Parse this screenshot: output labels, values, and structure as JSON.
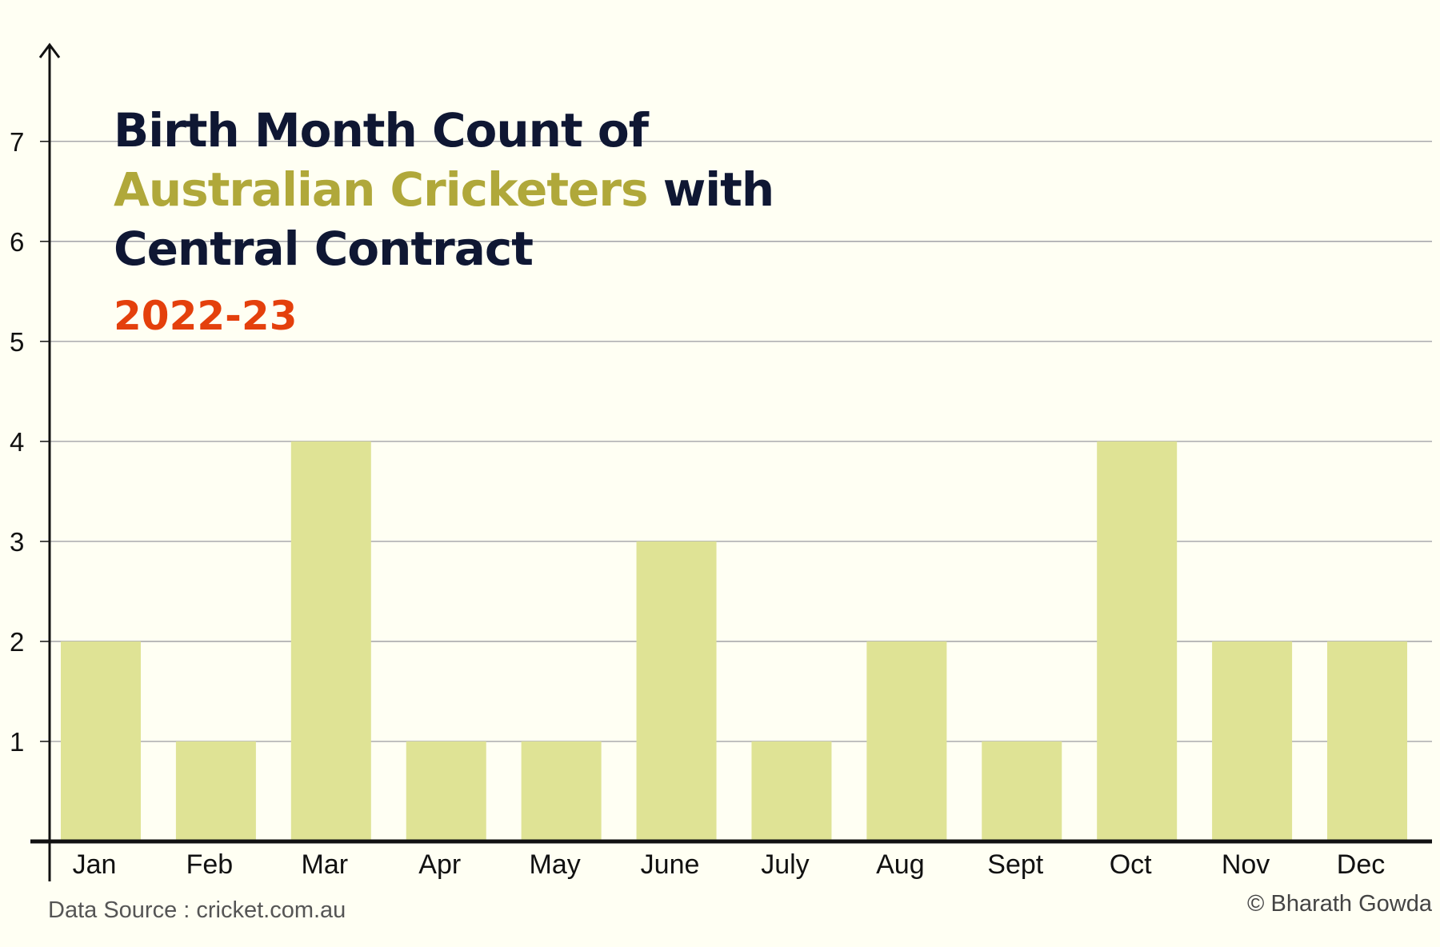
{
  "title": {
    "line1": "Birth Month Count of",
    "line2_accent": "Australian Cricketers",
    "line2_rest": " with",
    "line3": "Central Contract"
  },
  "subtitle": "2022-23",
  "source": "Data Source : cricket.com.au",
  "credit": "© Bharath Gowda",
  "colors": {
    "background": "#fffff3",
    "bar": "#dfe395",
    "title": "#0f1733",
    "accent": "#b0a83a",
    "subtitle": "#e4400c"
  },
  "chart_data": {
    "type": "bar",
    "categories": [
      "Jan",
      "Feb",
      "Mar",
      "Apr",
      "May",
      "June",
      "July",
      "Aug",
      "Sept",
      "Oct",
      "Nov",
      "Dec"
    ],
    "values": [
      2,
      1,
      4,
      1,
      1,
      3,
      1,
      2,
      1,
      4,
      2,
      2
    ],
    "yticks": [
      1,
      2,
      3,
      4,
      5,
      6,
      7
    ],
    "ylim": [
      0,
      7.95
    ],
    "grid": true,
    "xlabel": "",
    "ylabel": ""
  }
}
